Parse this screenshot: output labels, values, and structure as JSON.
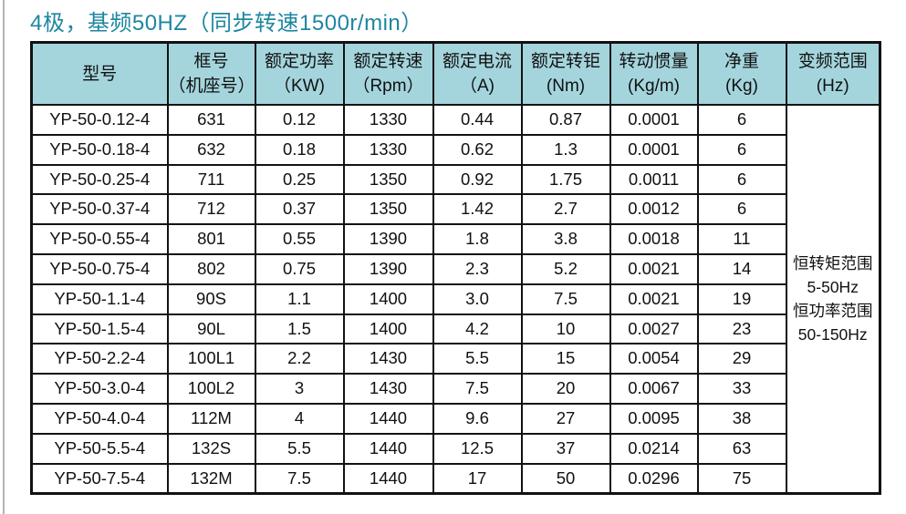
{
  "page": {
    "title": "4极，基频50HZ（同步转速1500r/min）"
  },
  "colors": {
    "title_text": "#1d87a0",
    "header_bg": "#a4d5dd",
    "table_border": "#121212",
    "body_text": "#111111"
  },
  "table": {
    "columns": [
      {
        "line1": "型号",
        "line2": ""
      },
      {
        "line1": "框号",
        "line2": "（机座号）"
      },
      {
        "line1": "额定功率",
        "line2": "（KW)"
      },
      {
        "line1": "额定转速",
        "line2": "（Rpm）"
      },
      {
        "line1": "额定电流",
        "line2": "（A)"
      },
      {
        "line1": "额定转钜",
        "line2": "(Nm)"
      },
      {
        "line1": "转动惯量",
        "line2": "(Kg/m)"
      },
      {
        "line1": "净重",
        "line2": "(Kg)"
      },
      {
        "line1": "变频范围",
        "line2": "(Hz)"
      }
    ],
    "rows": [
      [
        "YP-50-0.12-4",
        "631",
        "0.12",
        "1330",
        "0.44",
        "0.87",
        "0.0001",
        "6"
      ],
      [
        "YP-50-0.18-4",
        "632",
        "0.18",
        "1330",
        "0.62",
        "1.3",
        "0.0001",
        "6"
      ],
      [
        "YP-50-0.25-4",
        "711",
        "0.25",
        "1350",
        "0.92",
        "1.75",
        "0.0011",
        "6"
      ],
      [
        "YP-50-0.37-4",
        "712",
        "0.37",
        "1350",
        "1.42",
        "2.7",
        "0.0012",
        "6"
      ],
      [
        "YP-50-0.55-4",
        "801",
        "0.55",
        "1390",
        "1.8",
        "3.8",
        "0.0018",
        "11"
      ],
      [
        "YP-50-0.75-4",
        "802",
        "0.75",
        "1390",
        "2.3",
        "5.2",
        "0.0021",
        "14"
      ],
      [
        "YP-50-1.1-4",
        "90S",
        "1.1",
        "1400",
        "3.0",
        "7.5",
        "0.0021",
        "19"
      ],
      [
        "YP-50-1.5-4",
        "90L",
        "1.5",
        "1400",
        "4.2",
        "10",
        "0.0027",
        "23"
      ],
      [
        "YP-50-2.2-4",
        "100L1",
        "2.2",
        "1430",
        "5.5",
        "15",
        "0.0054",
        "29"
      ],
      [
        "YP-50-3.0-4",
        "100L2",
        "3",
        "1430",
        "7.5",
        "20",
        "0.0067",
        "33"
      ],
      [
        "YP-50-4.0-4",
        "112M",
        "4",
        "1440",
        "9.6",
        "27",
        "0.0095",
        "38"
      ],
      [
        "YP-50-5.5-4",
        "132S",
        "5.5",
        "1440",
        "12.5",
        "37",
        "0.0214",
        "63"
      ],
      [
        "YP-50-7.5-4",
        "132M",
        "7.5",
        "1440",
        "17",
        "50",
        "0.0296",
        "75"
      ]
    ],
    "merged_note": [
      "恒转矩范围",
      "5-50Hz",
      "恒功率范围",
      "50-150Hz"
    ]
  }
}
